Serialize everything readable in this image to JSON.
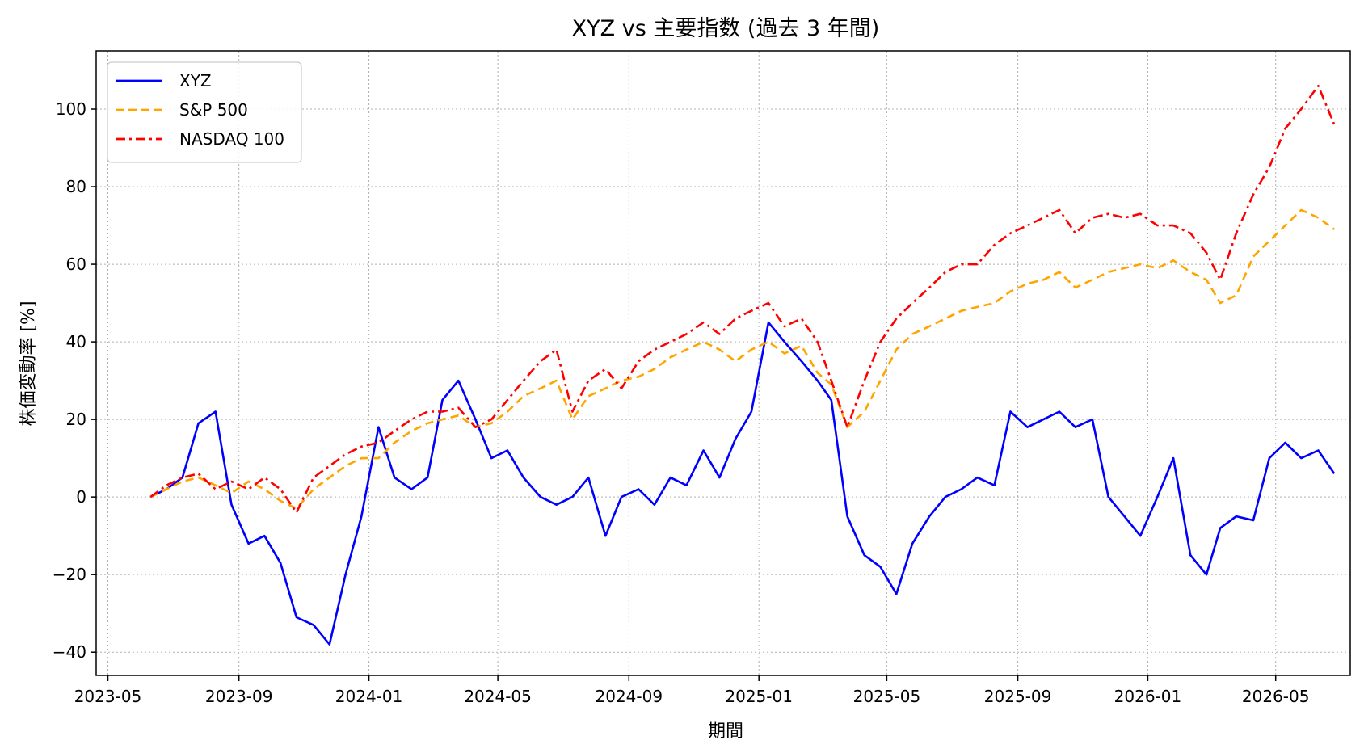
{
  "chart_data": {
    "type": "line",
    "title": "XYZ vs 主要指数 (過去 3 年間)",
    "xlabel": "期間",
    "ylabel": "株価変動率 [%]",
    "x_ticks": [
      "2023-05",
      "2023-09",
      "2024-01",
      "2024-05",
      "2024-09",
      "2025-01",
      "2025-05",
      "2025-09",
      "2026-01",
      "2026-05"
    ],
    "y_ticks": [
      -40,
      -20,
      0,
      20,
      40,
      60,
      80,
      100
    ],
    "xlim": [
      "2023-04-20",
      "2026-07-10"
    ],
    "ylim": [
      -46,
      115
    ],
    "grid": true,
    "legend_position": "upper-left",
    "x": [
      "2023-06-10",
      "2023-06-25",
      "2023-07-10",
      "2023-07-25",
      "2023-08-10",
      "2023-08-25",
      "2023-09-10",
      "2023-09-25",
      "2023-10-10",
      "2023-10-25",
      "2023-11-10",
      "2023-11-25",
      "2023-12-10",
      "2023-12-25",
      "2024-01-10",
      "2024-01-25",
      "2024-02-10",
      "2024-02-25",
      "2024-03-10",
      "2024-03-25",
      "2024-04-10",
      "2024-04-25",
      "2024-05-10",
      "2024-05-25",
      "2024-06-10",
      "2024-06-25",
      "2024-07-10",
      "2024-07-25",
      "2024-08-10",
      "2024-08-25",
      "2024-09-10",
      "2024-09-25",
      "2024-10-10",
      "2024-10-25",
      "2024-11-10",
      "2024-11-25",
      "2024-12-10",
      "2024-12-25",
      "2025-01-10",
      "2025-01-25",
      "2025-02-10",
      "2025-02-25",
      "2025-03-10",
      "2025-03-25",
      "2025-04-10",
      "2025-04-25",
      "2025-05-10",
      "2025-05-25",
      "2025-06-10",
      "2025-06-25",
      "2025-07-10",
      "2025-07-25",
      "2025-08-10",
      "2025-08-25",
      "2025-09-10",
      "2025-09-25",
      "2025-10-10",
      "2025-10-25",
      "2025-11-10",
      "2025-11-25",
      "2025-12-10",
      "2025-12-25",
      "2026-01-10",
      "2026-01-25",
      "2026-02-10",
      "2026-02-25",
      "2026-03-10",
      "2026-03-25",
      "2026-04-10",
      "2026-04-25",
      "2026-05-10",
      "2026-05-25",
      "2026-06-10",
      "2026-06-25"
    ],
    "series": [
      {
        "name": "XYZ",
        "color": "#0000ff",
        "dash": "solid",
        "values": [
          0,
          2,
          5,
          19,
          22,
          -2,
          -12,
          -10,
          -17,
          -31,
          -33,
          -38,
          -20,
          -5,
          18,
          5,
          2,
          5,
          25,
          30,
          20,
          10,
          12,
          5,
          0,
          -2,
          0,
          5,
          -10,
          0,
          2,
          -2,
          5,
          3,
          12,
          5,
          15,
          22,
          45,
          40,
          35,
          30,
          25,
          -5,
          -15,
          -18,
          -25,
          -12,
          -5,
          0,
          2,
          5,
          3,
          22,
          18,
          20,
          22,
          18,
          20,
          0,
          -5,
          -10,
          0,
          10,
          -15,
          -20,
          -8,
          -5,
          -6,
          10,
          14,
          10,
          12,
          6
        ]
      },
      {
        "name": "S&P 500",
        "color": "#ffa500",
        "dash": "dashed",
        "values": [
          0,
          2,
          4,
          5,
          3,
          1,
          4,
          2,
          -1,
          -3,
          2,
          5,
          8,
          10,
          10,
          14,
          17,
          19,
          20,
          21,
          18,
          19,
          22,
          26,
          28,
          30,
          20,
          26,
          28,
          30,
          31,
          33,
          36,
          38,
          40,
          38,
          35,
          38,
          40,
          37,
          39,
          32,
          29,
          18,
          22,
          30,
          38,
          42,
          44,
          46,
          48,
          49,
          50,
          53,
          55,
          56,
          58,
          54,
          56,
          58,
          59,
          60,
          59,
          61,
          58,
          56,
          50,
          52,
          62,
          66,
          70,
          74,
          72,
          69
        ]
      },
      {
        "name": "NASDAQ 100",
        "color": "#ff0000",
        "dash": "dashdot",
        "values": [
          0,
          3,
          5,
          6,
          2,
          4,
          2,
          5,
          2,
          -4,
          5,
          8,
          11,
          13,
          14,
          17,
          20,
          22,
          22,
          23,
          18,
          20,
          25,
          30,
          35,
          38,
          22,
          30,
          33,
          28,
          35,
          38,
          40,
          42,
          45,
          42,
          46,
          48,
          50,
          44,
          46,
          40,
          30,
          18,
          30,
          40,
          46,
          50,
          54,
          58,
          60,
          60,
          65,
          68,
          70,
          72,
          74,
          68,
          72,
          73,
          72,
          73,
          70,
          70,
          68,
          63,
          56,
          68,
          78,
          85,
          95,
          100,
          106,
          96
        ]
      }
    ]
  }
}
